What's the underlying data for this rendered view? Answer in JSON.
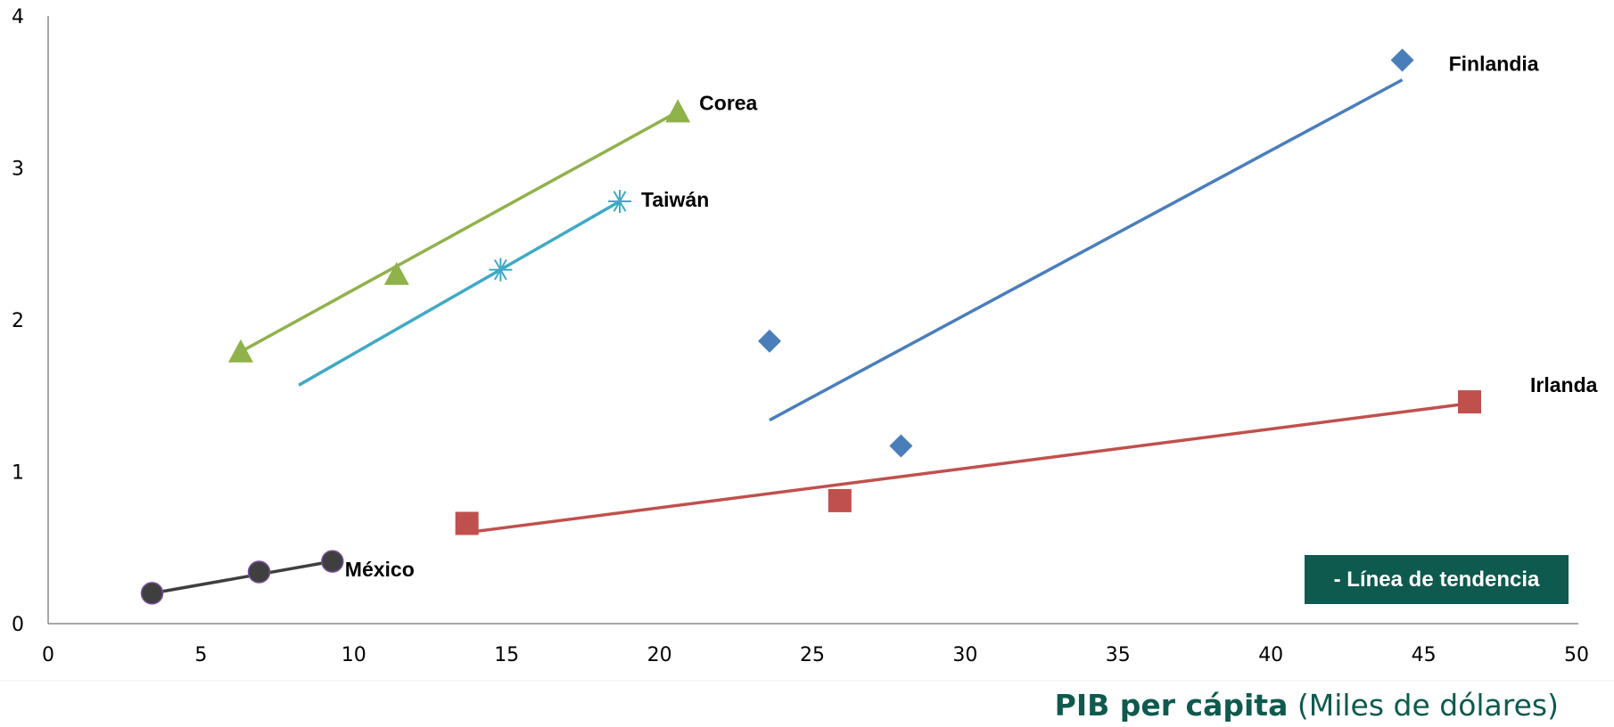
{
  "chart_data": {
    "type": "scatter",
    "xlabel_bold": "PIB per cápita",
    "xlabel_rest": "(Miles de dólares)",
    "xlim": [
      0,
      50
    ],
    "ylim": [
      0,
      4
    ],
    "xticks": [
      0,
      5,
      10,
      15,
      20,
      25,
      30,
      35,
      40,
      45,
      50
    ],
    "yticks": [
      0,
      1,
      2,
      3,
      4
    ],
    "grid": false,
    "legend": "bottom-right",
    "legend_text": "- Línea de tendencia",
    "series": [
      {
        "name": "México",
        "marker": "circle",
        "color": "#3f3f3f",
        "points": [
          [
            3.4,
            0.2
          ],
          [
            6.9,
            0.34
          ],
          [
            9.3,
            0.41
          ]
        ],
        "trend": [
          [
            3.4,
            0.2
          ],
          [
            9.3,
            0.41
          ]
        ]
      },
      {
        "name": "Corea",
        "marker": "triangle",
        "color": "#8fb24a",
        "points": [
          [
            6.3,
            1.79
          ],
          [
            11.4,
            2.3
          ],
          [
            20.6,
            3.37
          ]
        ],
        "trend": [
          [
            6.3,
            1.79
          ],
          [
            20.6,
            3.37
          ]
        ]
      },
      {
        "name": "Taiwán",
        "marker": "asterisk",
        "color": "#3fa9c5",
        "points": [
          [
            14.8,
            2.33
          ],
          [
            18.7,
            2.78
          ]
        ],
        "trend": [
          [
            8.2,
            1.57
          ],
          [
            18.7,
            2.78
          ]
        ]
      },
      {
        "name": "Finlandia",
        "marker": "diamond",
        "color": "#4a7ebb",
        "points": [
          [
            23.6,
            1.86
          ],
          [
            27.9,
            1.17
          ],
          [
            44.3,
            3.71
          ]
        ],
        "trend": [
          [
            23.6,
            1.34
          ],
          [
            44.3,
            3.58
          ]
        ]
      },
      {
        "name": "Irlanda",
        "marker": "square",
        "color": "#c0504d",
        "points": [
          [
            13.7,
            0.66
          ],
          [
            25.9,
            0.81
          ],
          [
            46.5,
            1.46
          ]
        ],
        "trend": [
          [
            13.7,
            0.6
          ],
          [
            46.5,
            1.45
          ]
        ]
      }
    ]
  }
}
